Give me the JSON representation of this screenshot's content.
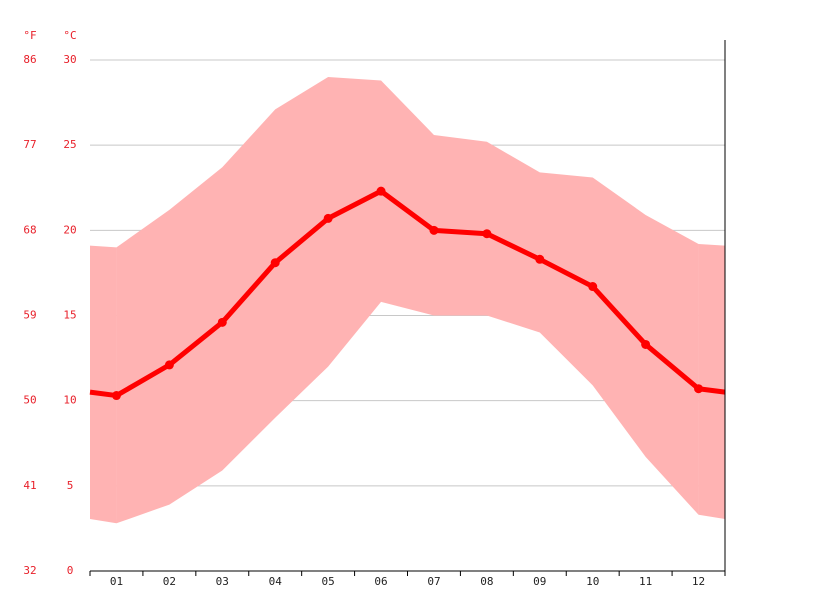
{
  "chart_data": {
    "type": "climate",
    "ylabel": "°C",
    "y2label": "°F",
    "categories": [
      "01",
      "02",
      "03",
      "04",
      "05",
      "06",
      "07",
      "08",
      "09",
      "10",
      "11",
      "12"
    ],
    "series": [
      {
        "color": "#ff0000",
        "values": [
          10.3,
          12.1,
          14.6,
          18.1,
          20.7,
          22.3,
          20.0,
          19.8,
          18.3,
          16.7,
          13.3,
          10.7
        ]
      }
    ],
    "band": {
      "color": "#ffb3b3",
      "upper": [
        19.0,
        21.2,
        23.7,
        27.1,
        29.0,
        28.8,
        25.6,
        25.2,
        23.4,
        23.1,
        20.9,
        19.2
      ],
      "lower": [
        2.8,
        3.9,
        5.9,
        9.0,
        12.0,
        15.8,
        15.0,
        15.0,
        14.0,
        10.9,
        6.7,
        3.3
      ]
    },
    "ylim": [
      0,
      30
    ],
    "yticks": [
      0,
      5,
      10,
      15,
      20,
      25,
      30
    ],
    "y2lim": [
      32,
      86
    ],
    "y2ticks": [
      32,
      41,
      50,
      59,
      68,
      77,
      86
    ],
    "grid": true
  }
}
